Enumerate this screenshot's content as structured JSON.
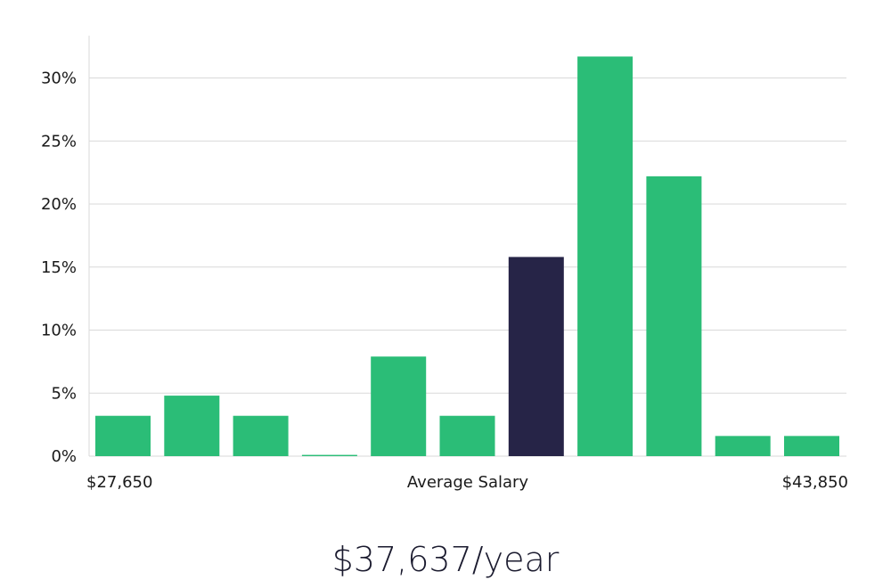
{
  "chart_data": {
    "type": "bar",
    "title": "",
    "xlabel": "Average Salary",
    "ylabel": "",
    "x_range_labels": {
      "min": "$27,650",
      "center": "Average Salary",
      "max": "$43,850"
    },
    "ylim": [
      0,
      33
    ],
    "y_ticks": [
      {
        "value": 0,
        "label": "0%"
      },
      {
        "value": 5,
        "label": "5%"
      },
      {
        "value": 10,
        "label": "10%"
      },
      {
        "value": 15,
        "label": "15%"
      },
      {
        "value": 20,
        "label": "20%"
      },
      {
        "value": 25,
        "label": "25%"
      },
      {
        "value": 30,
        "label": "30%"
      }
    ],
    "grid": true,
    "values": [
      3.2,
      4.8,
      3.2,
      0.1,
      7.9,
      3.2,
      15.8,
      31.7,
      22.2,
      1.6,
      1.6
    ],
    "highlight_index": 6,
    "colors": {
      "bar": "#2bbd77",
      "highlight": "#262447",
      "grid": "#d9d9d9",
      "axis": "#d9d9d9"
    }
  },
  "summary": {
    "salary": "$37,637/year"
  }
}
